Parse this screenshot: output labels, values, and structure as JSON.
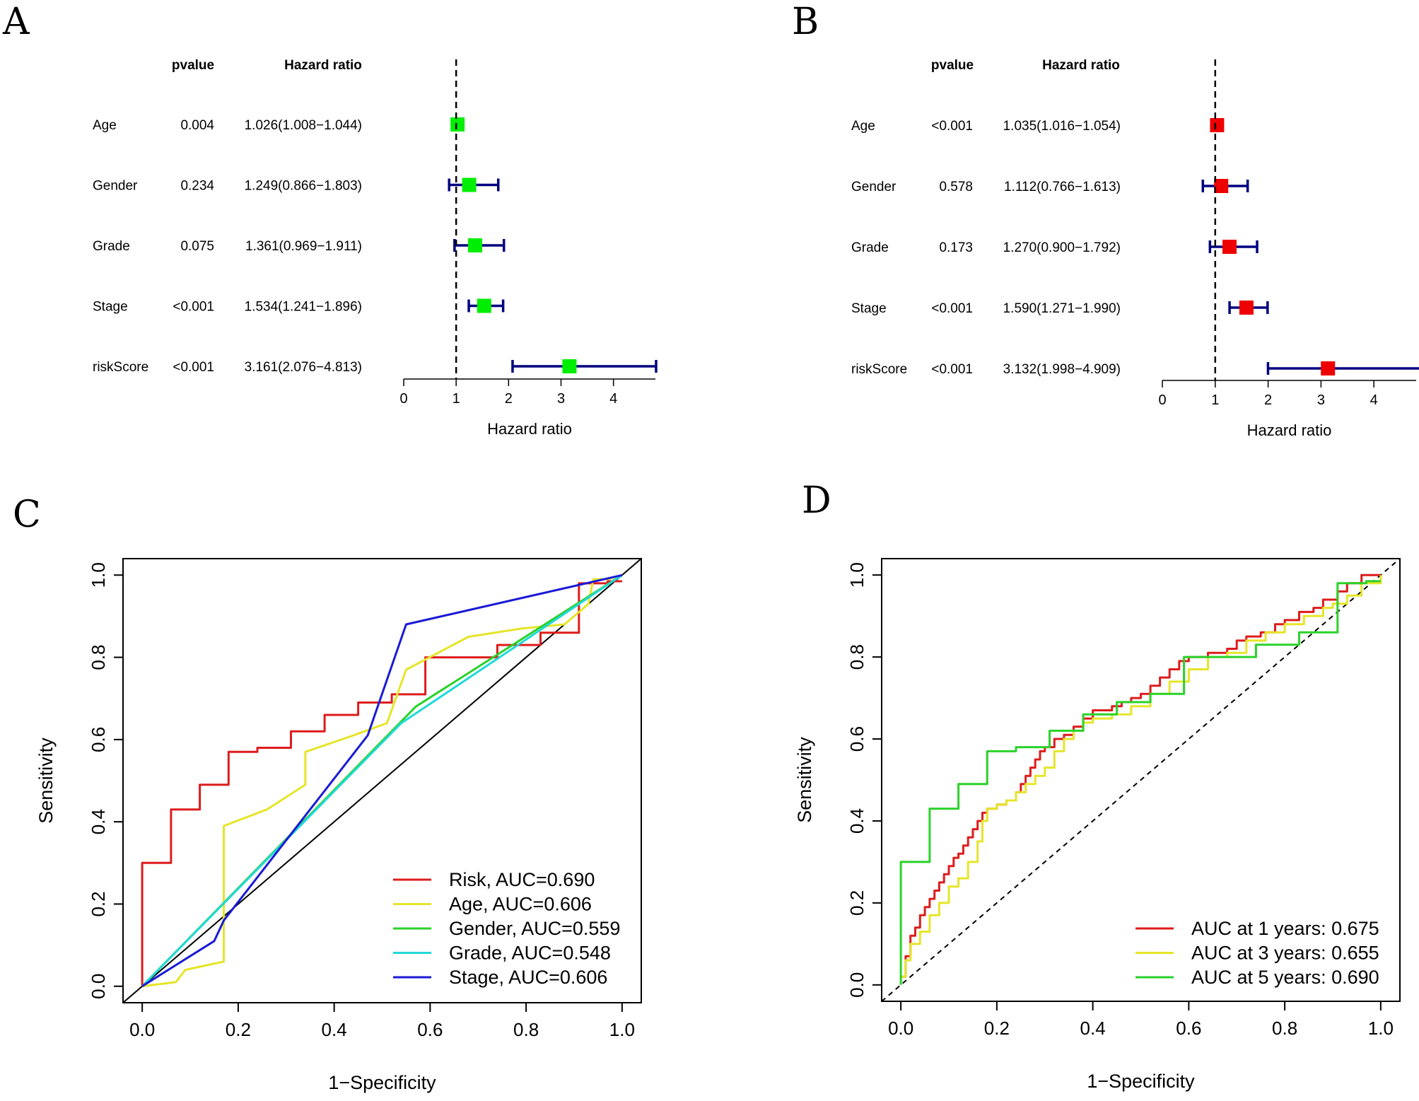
{
  "chart_data": [
    {
      "type": "forest",
      "panel": "A",
      "header_pvalue": "pvalue",
      "header_hr": "Hazard ratio",
      "xlabel": "Hazard ratio",
      "xlim": [
        0,
        4.8
      ],
      "xticks": [
        "0",
        "1",
        "2",
        "3",
        "4"
      ],
      "reference_line": 1,
      "marker_color": "#00ee00",
      "ci_color": "#000080",
      "rows": [
        {
          "label": "Age",
          "pvalue": "0.004",
          "hr_text": "1.026(1.008−1.044)",
          "hr": 1.026,
          "lo": 1.008,
          "hi": 1.044
        },
        {
          "label": "Gender",
          "pvalue": "0.234",
          "hr_text": "1.249(0.866−1.803)",
          "hr": 1.249,
          "lo": 0.866,
          "hi": 1.803
        },
        {
          "label": "Grade",
          "pvalue": "0.075",
          "hr_text": "1.361(0.969−1.911)",
          "hr": 1.361,
          "lo": 0.969,
          "hi": 1.911
        },
        {
          "label": "Stage",
          "pvalue": "<0.001",
          "hr_text": "1.534(1.241−1.896)",
          "hr": 1.534,
          "lo": 1.241,
          "hi": 1.896
        },
        {
          "label": "riskScore",
          "pvalue": "<0.001",
          "hr_text": "3.161(2.076−4.813)",
          "hr": 3.161,
          "lo": 2.076,
          "hi": 4.813
        }
      ]
    },
    {
      "type": "forest",
      "panel": "B",
      "header_pvalue": "pvalue",
      "header_hr": "Hazard ratio",
      "xlabel": "Hazard ratio",
      "xlim": [
        0,
        4.8
      ],
      "xticks": [
        "0",
        "1",
        "2",
        "3",
        "4"
      ],
      "reference_line": 1,
      "marker_color": "#ee0000",
      "ci_color": "#000080",
      "rows": [
        {
          "label": "Age",
          "pvalue": "<0.001",
          "hr_text": "1.035(1.016−1.054)",
          "hr": 1.035,
          "lo": 1.016,
          "hi": 1.054
        },
        {
          "label": "Gender",
          "pvalue": "0.578",
          "hr_text": "1.112(0.766−1.613)",
          "hr": 1.112,
          "lo": 0.766,
          "hi": 1.613
        },
        {
          "label": "Grade",
          "pvalue": "0.173",
          "hr_text": "1.270(0.900−1.792)",
          "hr": 1.27,
          "lo": 0.9,
          "hi": 1.792
        },
        {
          "label": "Stage",
          "pvalue": "<0.001",
          "hr_text": "1.590(1.271−1.990)",
          "hr": 1.59,
          "lo": 1.271,
          "hi": 1.99
        },
        {
          "label": "riskScore",
          "pvalue": "<0.001",
          "hr_text": "3.132(1.998−4.909)",
          "hr": 3.132,
          "lo": 1.998,
          "hi": 4.909
        }
      ]
    },
    {
      "type": "line",
      "panel": "C",
      "xlabel": "1−Specificity",
      "ylabel": "Sensitivity",
      "xlim": [
        -0.04,
        1.04
      ],
      "ylim": [
        -0.04,
        1.04
      ],
      "xticks": [
        "0.0",
        "0.2",
        "0.4",
        "0.6",
        "0.8",
        "1.0"
      ],
      "yticks": [
        "0.0",
        "0.2",
        "0.4",
        "0.6",
        "0.8",
        "1.0"
      ],
      "diagonal": "solid",
      "series": [
        {
          "name": "Risk, AUC=0.690",
          "color": "#dd1c1c",
          "step": true,
          "x": [
            0,
            0,
            0.06,
            0.06,
            0.12,
            0.12,
            0.18,
            0.18,
            0.24,
            0.24,
            0.31,
            0.31,
            0.38,
            0.38,
            0.45,
            0.45,
            0.52,
            0.52,
            0.59,
            0.59,
            0.74,
            0.74,
            0.83,
            0.83,
            0.91,
            0.91,
            0.97,
            0.97,
            1.0
          ],
          "y": [
            0,
            0.3,
            0.3,
            0.43,
            0.43,
            0.49,
            0.49,
            0.57,
            0.57,
            0.58,
            0.58,
            0.62,
            0.62,
            0.66,
            0.66,
            0.69,
            0.69,
            0.71,
            0.71,
            0.8,
            0.8,
            0.83,
            0.83,
            0.86,
            0.86,
            0.98,
            0.98,
            0.985,
            0.985
          ]
        },
        {
          "name": "Age, AUC=0.606",
          "color": "#e5e52a",
          "x": [
            0,
            0.07,
            0.09,
            0.17,
            0.17,
            0.26,
            0.34,
            0.34,
            0.44,
            0.51,
            0.55,
            0.68,
            0.79,
            0.88,
            0.9,
            0.92,
            0.93,
            0.94,
            0.97,
            1.0
          ],
          "y": [
            0,
            0.01,
            0.04,
            0.06,
            0.39,
            0.43,
            0.49,
            0.57,
            0.61,
            0.64,
            0.77,
            0.85,
            0.87,
            0.88,
            0.9,
            0.92,
            0.93,
            0.99,
            0.99,
            1.0
          ]
        },
        {
          "name": "Gender, AUC=0.559",
          "color": "#2ad22a",
          "x": [
            0,
            0.57,
            1.0
          ],
          "y": [
            0,
            0.68,
            1.0
          ]
        },
        {
          "name": "Grade, AUC=0.548",
          "color": "#22d8d8",
          "x": [
            0,
            0.54,
            1.0
          ],
          "y": [
            0,
            0.64,
            1.0
          ]
        },
        {
          "name": "Stage, AUC=0.606",
          "color": "#1a1ad6",
          "x": [
            0,
            0.15,
            0.17,
            0.47,
            0.55,
            1.0
          ],
          "y": [
            0,
            0.11,
            0.16,
            0.61,
            0.88,
            1.0
          ]
        }
      ]
    },
    {
      "type": "line",
      "panel": "D",
      "xlabel": "1−Specificity",
      "ylabel": "Sensitivity",
      "xlim": [
        -0.04,
        1.04
      ],
      "ylim": [
        -0.04,
        1.04
      ],
      "xticks": [
        "0.0",
        "0.2",
        "0.4",
        "0.6",
        "0.8",
        "1.0"
      ],
      "yticks": [
        "0.0",
        "0.2",
        "0.4",
        "0.6",
        "0.8",
        "1.0"
      ],
      "diagonal": "dashed",
      "series": [
        {
          "name": "AUC at 1 years: 0.675",
          "color": "#dd1c1c",
          "step": true,
          "x": [
            0,
            0.01,
            0.02,
            0.03,
            0.04,
            0.05,
            0.06,
            0.07,
            0.08,
            0.09,
            0.1,
            0.11,
            0.12,
            0.13,
            0.14,
            0.15,
            0.16,
            0.17,
            0.18,
            0.2,
            0.22,
            0.24,
            0.25,
            0.26,
            0.27,
            0.28,
            0.29,
            0.3,
            0.32,
            0.34,
            0.36,
            0.38,
            0.4,
            0.42,
            0.44,
            0.46,
            0.48,
            0.5,
            0.52,
            0.54,
            0.56,
            0.58,
            0.6,
            0.64,
            0.68,
            0.7,
            0.72,
            0.75,
            0.78,
            0.8,
            0.83,
            0.86,
            0.88,
            0.91,
            0.93,
            0.96,
            1.0
          ],
          "y": [
            0.02,
            0.07,
            0.12,
            0.14,
            0.17,
            0.19,
            0.21,
            0.23,
            0.25,
            0.27,
            0.29,
            0.31,
            0.32,
            0.34,
            0.36,
            0.38,
            0.4,
            0.42,
            0.43,
            0.44,
            0.45,
            0.47,
            0.49,
            0.51,
            0.53,
            0.55,
            0.57,
            0.58,
            0.6,
            0.61,
            0.63,
            0.65,
            0.67,
            0.67,
            0.68,
            0.69,
            0.7,
            0.71,
            0.73,
            0.75,
            0.77,
            0.79,
            0.8,
            0.81,
            0.82,
            0.84,
            0.85,
            0.86,
            0.88,
            0.89,
            0.91,
            0.92,
            0.94,
            0.96,
            0.98,
            1.0,
            1.0
          ]
        },
        {
          "name": "AUC at 3 years: 0.655",
          "color": "#e5e52a",
          "step": true,
          "x": [
            0,
            0.01,
            0.02,
            0.04,
            0.06,
            0.08,
            0.1,
            0.12,
            0.14,
            0.16,
            0.17,
            0.18,
            0.2,
            0.22,
            0.24,
            0.26,
            0.28,
            0.3,
            0.32,
            0.34,
            0.36,
            0.38,
            0.4,
            0.44,
            0.48,
            0.52,
            0.56,
            0.6,
            0.64,
            0.68,
            0.72,
            0.76,
            0.8,
            0.84,
            0.88,
            0.9,
            0.93,
            0.96,
            1.0
          ],
          "y": [
            0.02,
            0.06,
            0.1,
            0.13,
            0.17,
            0.2,
            0.24,
            0.26,
            0.3,
            0.35,
            0.4,
            0.43,
            0.44,
            0.45,
            0.47,
            0.49,
            0.51,
            0.53,
            0.57,
            0.6,
            0.62,
            0.64,
            0.65,
            0.66,
            0.68,
            0.71,
            0.74,
            0.77,
            0.8,
            0.81,
            0.84,
            0.86,
            0.88,
            0.9,
            0.92,
            0.93,
            0.95,
            0.98,
            1.0
          ]
        },
        {
          "name": "AUC at 5 years: 0.690",
          "color": "#2ad22a",
          "step": true,
          "x": [
            0,
            0,
            0.06,
            0.06,
            0.12,
            0.12,
            0.18,
            0.18,
            0.24,
            0.24,
            0.31,
            0.31,
            0.38,
            0.38,
            0.45,
            0.45,
            0.52,
            0.52,
            0.59,
            0.59,
            0.74,
            0.74,
            0.83,
            0.83,
            0.91,
            0.91,
            0.97,
            0.97,
            1.0
          ],
          "y": [
            0,
            0.3,
            0.3,
            0.43,
            0.43,
            0.49,
            0.49,
            0.57,
            0.57,
            0.58,
            0.58,
            0.62,
            0.62,
            0.66,
            0.66,
            0.69,
            0.69,
            0.71,
            0.71,
            0.8,
            0.8,
            0.83,
            0.83,
            0.86,
            0.86,
            0.98,
            0.98,
            0.985,
            0.985
          ]
        }
      ]
    }
  ]
}
